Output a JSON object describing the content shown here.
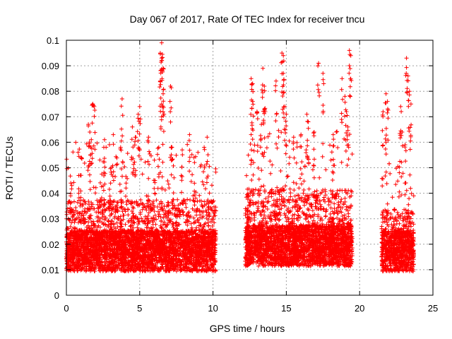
{
  "chart_data": {
    "type": "scatter",
    "title": "Day 067 of 2017, Rate Of TEC Index for receiver tncu",
    "xlabel": "GPS time / hours",
    "ylabel": "ROTI / TECUs",
    "xlim": [
      0,
      25
    ],
    "ylim": [
      0,
      0.1
    ],
    "x_ticks": [
      0,
      5,
      10,
      15,
      20,
      25
    ],
    "y_ticks": [
      0,
      0.01,
      0.02,
      0.03,
      0.04,
      0.05,
      0.06,
      0.07,
      0.08,
      0.09,
      0.1
    ],
    "x_tick_labels": [
      "0",
      "5",
      "10",
      "15",
      "20",
      "25"
    ],
    "y_tick_labels": [
      "0",
      "0.01",
      "0.02",
      "0.03",
      "0.04",
      "0.05",
      "0.06",
      "0.07",
      "0.08",
      "0.09",
      "0.1"
    ],
    "grid": true,
    "marker": "+",
    "series_color": "#ff0000",
    "data_segments": [
      {
        "start": 0.0,
        "end": 10.2,
        "baseline": 0.015,
        "typical_max": 0.045
      },
      {
        "start": 12.2,
        "end": 19.5,
        "baseline": 0.017,
        "typical_max": 0.05
      },
      {
        "start": 21.5,
        "end": 23.7,
        "baseline": 0.015,
        "typical_max": 0.04
      }
    ],
    "peaks": [
      {
        "x": 0.3,
        "y": 0.044
      },
      {
        "x": 0.8,
        "y": 0.056
      },
      {
        "x": 1.0,
        "y": 0.054
      },
      {
        "x": 1.5,
        "y": 0.067
      },
      {
        "x": 1.6,
        "y": 0.064
      },
      {
        "x": 1.7,
        "y": 0.061
      },
      {
        "x": 1.8,
        "y": 0.075
      },
      {
        "x": 1.9,
        "y": 0.074
      },
      {
        "x": 2.6,
        "y": 0.061
      },
      {
        "x": 3.2,
        "y": 0.063
      },
      {
        "x": 3.7,
        "y": 0.058
      },
      {
        "x": 3.8,
        "y": 0.077
      },
      {
        "x": 4.5,
        "y": 0.066
      },
      {
        "x": 4.7,
        "y": 0.062
      },
      {
        "x": 4.9,
        "y": 0.071
      },
      {
        "x": 5.0,
        "y": 0.074
      },
      {
        "x": 5.6,
        "y": 0.062
      },
      {
        "x": 6.0,
        "y": 0.053
      },
      {
        "x": 6.3,
        "y": 0.058
      },
      {
        "x": 6.4,
        "y": 0.095
      },
      {
        "x": 6.5,
        "y": 0.099
      },
      {
        "x": 6.5,
        "y": 0.093
      },
      {
        "x": 6.6,
        "y": 0.089
      },
      {
        "x": 6.4,
        "y": 0.084
      },
      {
        "x": 6.6,
        "y": 0.079
      },
      {
        "x": 6.5,
        "y": 0.075
      },
      {
        "x": 7.1,
        "y": 0.082
      },
      {
        "x": 7.2,
        "y": 0.058
      },
      {
        "x": 7.9,
        "y": 0.057
      },
      {
        "x": 8.4,
        "y": 0.063
      },
      {
        "x": 8.7,
        "y": 0.054
      },
      {
        "x": 9.6,
        "y": 0.062
      },
      {
        "x": 9.4,
        "y": 0.058
      },
      {
        "x": 12.6,
        "y": 0.085
      },
      {
        "x": 12.7,
        "y": 0.083
      },
      {
        "x": 12.7,
        "y": 0.076
      },
      {
        "x": 12.6,
        "y": 0.063
      },
      {
        "x": 13.0,
        "y": 0.072
      },
      {
        "x": 13.4,
        "y": 0.089
      },
      {
        "x": 13.5,
        "y": 0.082
      },
      {
        "x": 13.5,
        "y": 0.073
      },
      {
        "x": 13.3,
        "y": 0.067
      },
      {
        "x": 14.3,
        "y": 0.084
      },
      {
        "x": 14.7,
        "y": 0.095
      },
      {
        "x": 14.8,
        "y": 0.094
      },
      {
        "x": 14.8,
        "y": 0.087
      },
      {
        "x": 14.9,
        "y": 0.074
      },
      {
        "x": 15.0,
        "y": 0.071
      },
      {
        "x": 15.5,
        "y": 0.062
      },
      {
        "x": 16.0,
        "y": 0.063
      },
      {
        "x": 16.4,
        "y": 0.071
      },
      {
        "x": 16.5,
        "y": 0.068
      },
      {
        "x": 16.9,
        "y": 0.064
      },
      {
        "x": 17.2,
        "y": 0.091
      },
      {
        "x": 17.5,
        "y": 0.087
      },
      {
        "x": 18.2,
        "y": 0.063
      },
      {
        "x": 18.8,
        "y": 0.085
      },
      {
        "x": 19.0,
        "y": 0.078
      },
      {
        "x": 19.1,
        "y": 0.072
      },
      {
        "x": 19.3,
        "y": 0.096
      },
      {
        "x": 19.4,
        "y": 0.094
      },
      {
        "x": 19.2,
        "y": 0.066
      },
      {
        "x": 21.6,
        "y": 0.072
      },
      {
        "x": 21.8,
        "y": 0.079
      },
      {
        "x": 21.9,
        "y": 0.076
      },
      {
        "x": 21.8,
        "y": 0.06
      },
      {
        "x": 22.8,
        "y": 0.074
      },
      {
        "x": 22.9,
        "y": 0.064
      },
      {
        "x": 23.2,
        "y": 0.093
      },
      {
        "x": 23.3,
        "y": 0.086
      },
      {
        "x": 23.4,
        "y": 0.08
      },
      {
        "x": 23.5,
        "y": 0.075
      },
      {
        "x": 23.1,
        "y": 0.059
      }
    ]
  }
}
